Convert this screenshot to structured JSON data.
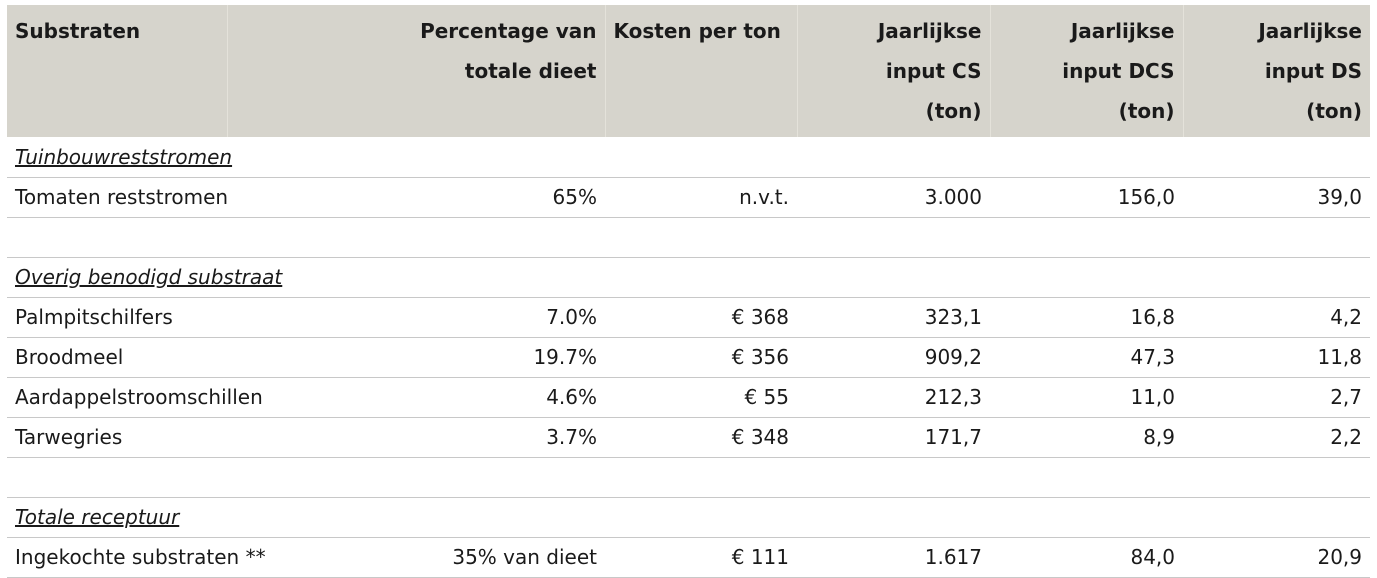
{
  "headers": {
    "substraten": "Substraten",
    "percentage_line1": "Percentage van",
    "percentage_line2": "totale dieet",
    "kosten": "Kosten per ton",
    "cs_line1": "Jaarlijkse",
    "cs_line2": "input CS",
    "cs_line3": "(ton)",
    "dcs_line1": "Jaarlijkse",
    "dcs_line2": "input DCS",
    "dcs_line3": "(ton)",
    "ds_line1": "Jaarlijkse",
    "ds_line2": "input DS",
    "ds_line3": "(ton)"
  },
  "sections": {
    "tuinbouw": "Tuinbouwreststromen",
    "overig": "Overig benodigd substraat",
    "totaal": "Totale receptuur"
  },
  "rows": {
    "tomaten": {
      "name": "Tomaten reststromen",
      "pct": "65%",
      "cost": "n.v.t.",
      "cs": "3.000",
      "dcs": "156,0",
      "ds": "39,0"
    },
    "palm": {
      "name": "Palmpitschilfers",
      "pct": "7.0%",
      "cost": "€ 368",
      "cs": "323,1",
      "dcs": "16,8",
      "ds": "4,2"
    },
    "brood": {
      "name": "Broodmeel",
      "pct": "19.7%",
      "cost": "€ 356",
      "cs": "909,2",
      "dcs": "47,3",
      "ds": "11,8"
    },
    "aardappel": {
      "name": "Aardappelstroomschillen",
      "pct": "4.6%",
      "cost": "€ 55",
      "cs": "212,3",
      "dcs": "11,0",
      "ds": "2,7"
    },
    "tarwe": {
      "name": "Tarwegries",
      "pct": "3.7%",
      "cost": "€ 348",
      "cs": "171,7",
      "dcs": "8,9",
      "ds": "2,2"
    },
    "ingekocht": {
      "name": "Ingekochte substraten **",
      "pct": "35% van dieet",
      "cost": "€ 111",
      "cs": "1.617",
      "dcs": "84,0",
      "ds": "20,9"
    }
  }
}
